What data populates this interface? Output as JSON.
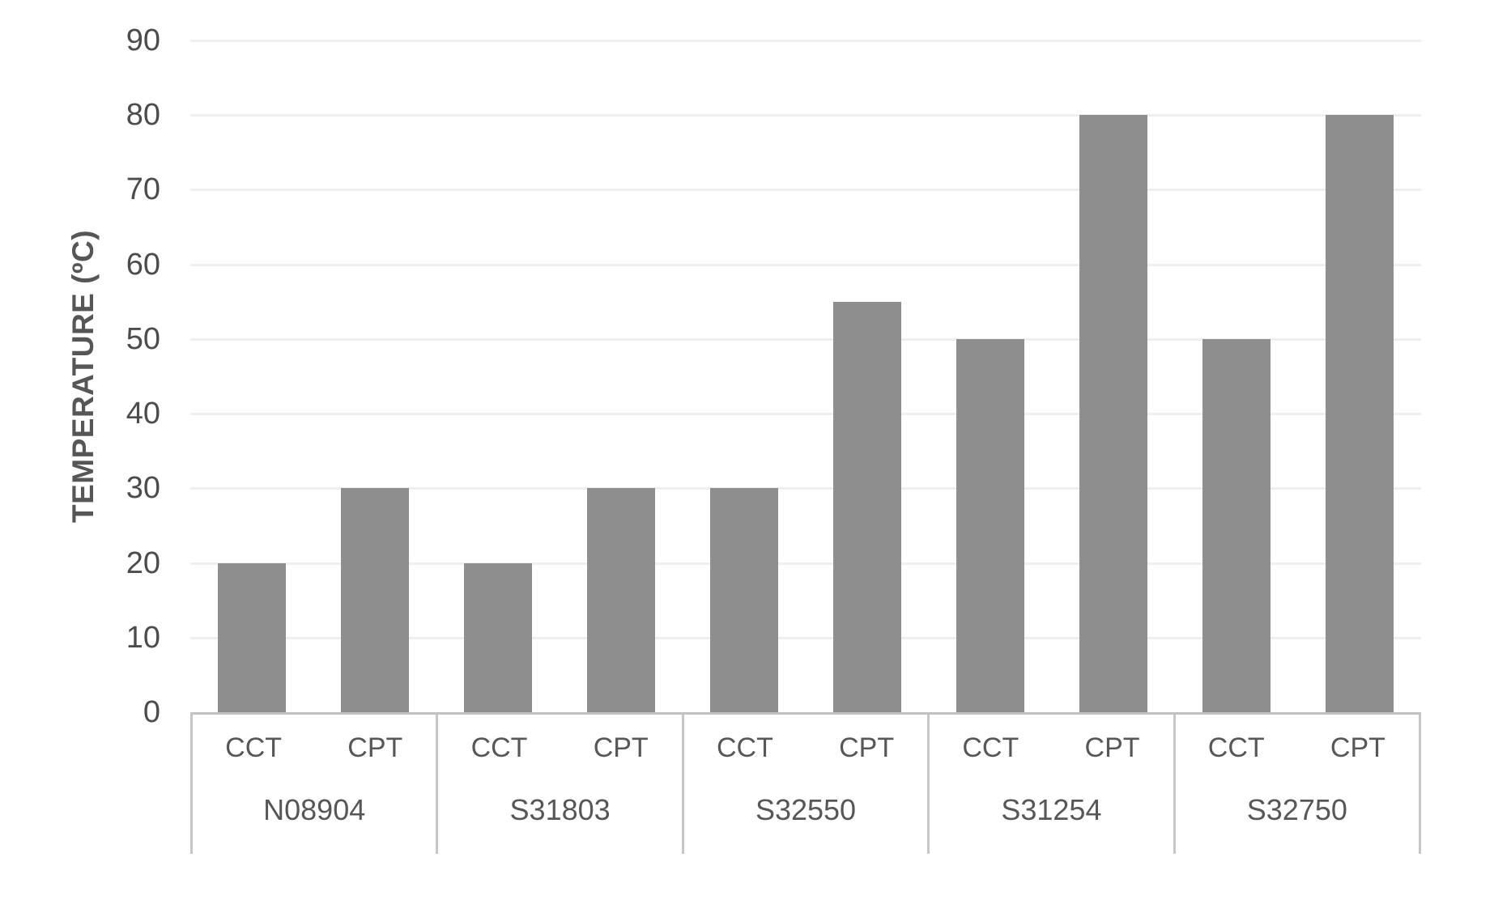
{
  "chart_data": {
    "type": "bar",
    "title": "",
    "xlabel": "",
    "ylabel": "TEMPERATURE (ºC)",
    "ylim": [
      0,
      90
    ],
    "yticks": [
      0,
      10,
      20,
      30,
      40,
      50,
      60,
      70,
      80,
      90
    ],
    "grid": true,
    "legend": "none",
    "bar_color": "#8E8E8E",
    "grid_color": "#EFEFEF",
    "axis_border_color": "#C6C6C6",
    "text_color": "#4C4C4C",
    "categories": [
      "N08904",
      "S31803",
      "S32550",
      "S31254",
      "S32750"
    ],
    "sub_categories": [
      "CCT",
      "CPT"
    ],
    "series": [
      {
        "name": "CCT",
        "values": [
          20,
          20,
          30,
          50,
          50
        ]
      },
      {
        "name": "CPT",
        "values": [
          30,
          30,
          55,
          80,
          80
        ]
      }
    ]
  }
}
